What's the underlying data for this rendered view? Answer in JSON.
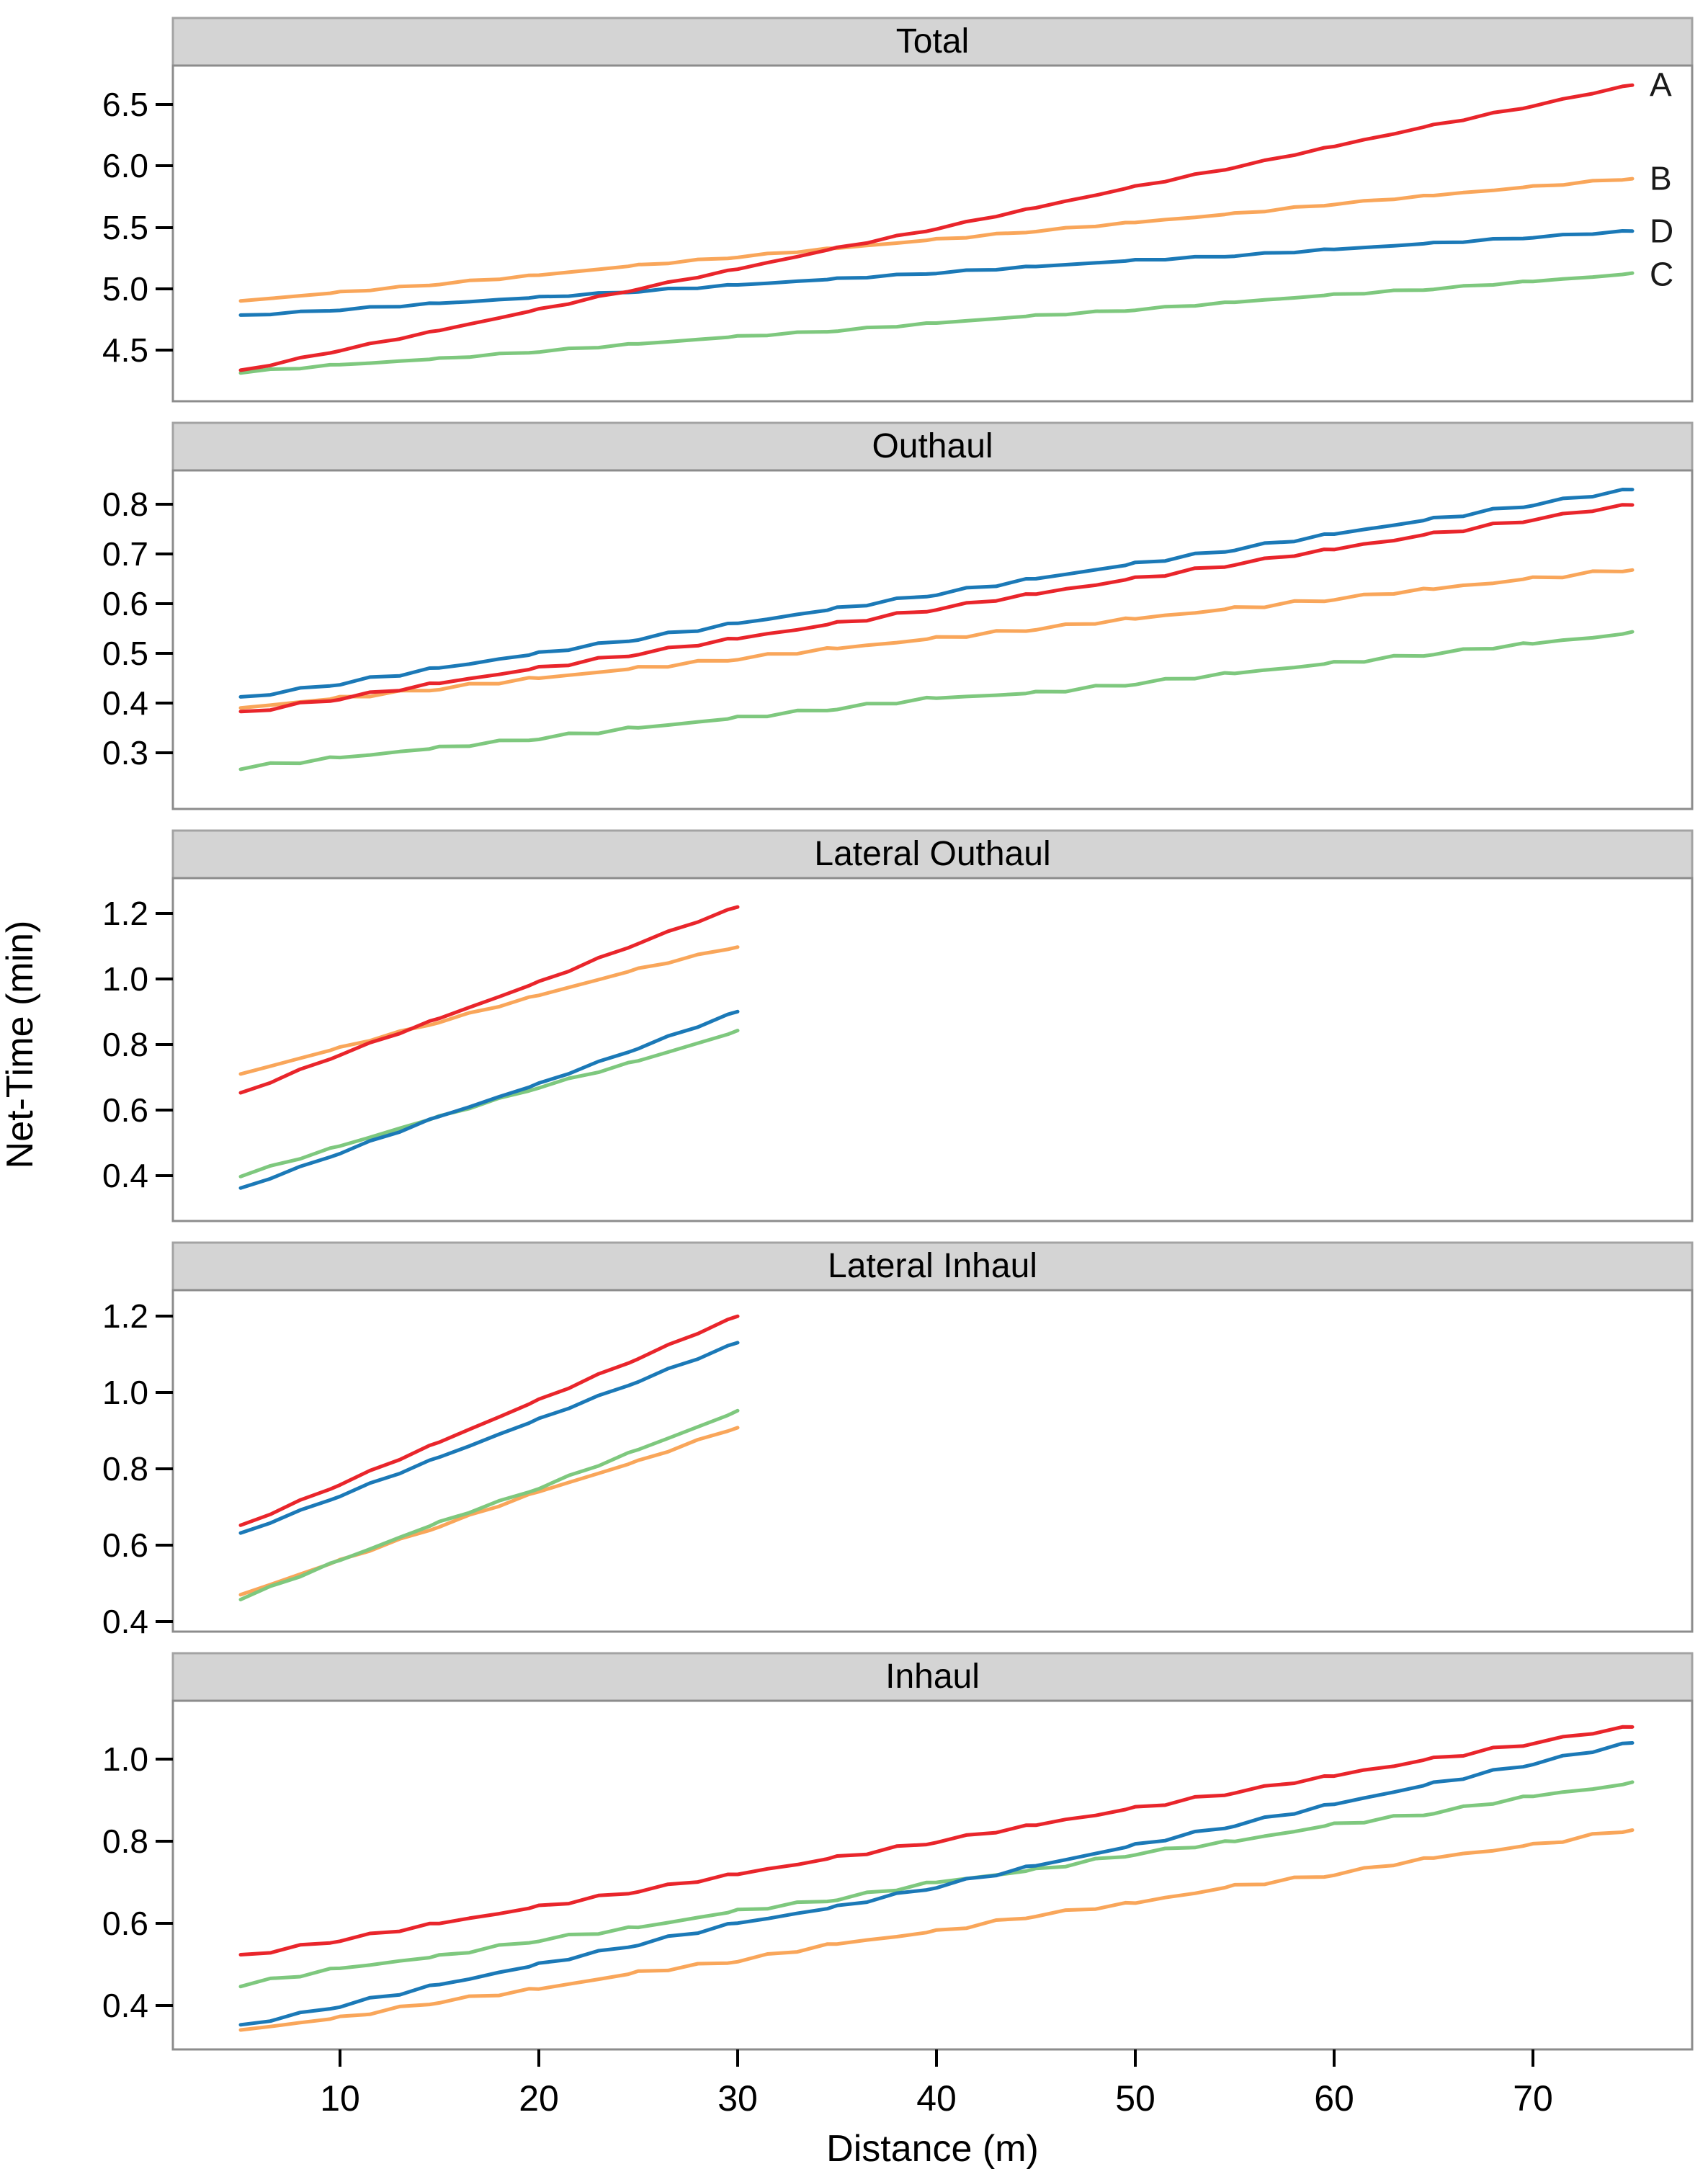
{
  "chart_data": {
    "type": "line",
    "title": "",
    "xlabel": "Distance (m)",
    "ylabel": "Net-Time (min)",
    "x_ticks": [
      10,
      20,
      30,
      40,
      50,
      60,
      70
    ],
    "xlim": [
      2,
      78
    ],
    "grid": false,
    "legend_position": "right-inside-top-panel",
    "colors": {
      "A": "#e9252b",
      "B": "#f9a65a",
      "C": "#7ec87e",
      "D": "#1b79b7"
    },
    "series_labels": {
      "A": "A",
      "B": "B",
      "C": "C",
      "D": "D"
    },
    "panels": [
      {
        "title": "Total",
        "y_ticks": [
          6.5,
          6.0,
          5.5,
          5.0,
          4.5
        ],
        "ylim": [
          4.2,
          6.9
        ],
        "legend": [
          "A",
          "B",
          "D",
          "C"
        ],
        "series": [
          {
            "id": "B",
            "x": [
              5,
              10,
              15,
              20,
              25,
              30,
              35,
              40,
              45,
              50,
              55,
              60,
              65,
              70,
              75
            ],
            "y": [
              4.9,
              4.97,
              5.04,
              5.11,
              5.19,
              5.26,
              5.33,
              5.4,
              5.47,
              5.54,
              5.61,
              5.69,
              5.76,
              5.83,
              5.9
            ]
          },
          {
            "id": "C",
            "x": [
              5,
              10,
              15,
              20,
              25,
              30,
              35,
              40,
              45,
              50,
              55,
              60,
              65,
              70,
              75
            ],
            "y": [
              4.32,
              4.38,
              4.43,
              4.49,
              4.55,
              4.61,
              4.66,
              4.72,
              4.78,
              4.83,
              4.89,
              4.95,
              5.0,
              5.06,
              5.12
            ]
          },
          {
            "id": "D",
            "x": [
              5,
              10,
              15,
              20,
              25,
              30,
              35,
              40,
              45,
              50,
              55,
              60,
              65,
              70,
              75
            ],
            "y": [
              4.78,
              4.83,
              4.88,
              4.93,
              4.98,
              5.03,
              5.08,
              5.13,
              5.18,
              5.23,
              5.27,
              5.32,
              5.37,
              5.42,
              5.47
            ]
          },
          {
            "id": "A",
            "x": [
              5,
              10,
              15,
              20,
              25,
              30,
              35,
              40,
              45,
              50,
              55,
              60,
              65,
              70,
              75
            ],
            "y": [
              4.33,
              4.5,
              4.66,
              4.83,
              5.0,
              5.16,
              5.33,
              5.49,
              5.66,
              5.83,
              5.99,
              6.16,
              6.33,
              6.49,
              6.66
            ]
          }
        ]
      },
      {
        "title": "Outhaul",
        "y_ticks": [
          0.8,
          0.7,
          0.6,
          0.5,
          0.4,
          0.3
        ],
        "ylim": [
          0.25,
          0.86
        ],
        "legend": [],
        "series": [
          {
            "id": "C",
            "x": [
              5,
              10,
              15,
              20,
              25,
              30,
              35,
              40,
              45,
              50,
              55,
              60,
              65,
              70,
              75
            ],
            "y": [
              0.27,
              0.29,
              0.31,
              0.33,
              0.35,
              0.37,
              0.39,
              0.41,
              0.42,
              0.44,
              0.46,
              0.48,
              0.5,
              0.52,
              0.54
            ]
          },
          {
            "id": "B",
            "x": [
              5,
              10,
              15,
              20,
              25,
              30,
              35,
              40,
              45,
              50,
              55,
              60,
              65,
              70,
              75
            ],
            "y": [
              0.39,
              0.41,
              0.43,
              0.45,
              0.47,
              0.49,
              0.51,
              0.53,
              0.55,
              0.57,
              0.59,
              0.61,
              0.63,
              0.65,
              0.67
            ]
          },
          {
            "id": "A",
            "x": [
              5,
              10,
              15,
              20,
              25,
              30,
              35,
              40,
              45,
              50,
              55,
              60,
              65,
              70,
              75
            ],
            "y": [
              0.38,
              0.41,
              0.44,
              0.47,
              0.5,
              0.53,
              0.56,
              0.59,
              0.62,
              0.65,
              0.68,
              0.71,
              0.74,
              0.77,
              0.8
            ]
          },
          {
            "id": "D",
            "x": [
              5,
              10,
              15,
              20,
              25,
              30,
              35,
              40,
              45,
              50,
              55,
              60,
              65,
              70,
              75
            ],
            "y": [
              0.41,
              0.44,
              0.47,
              0.5,
              0.53,
              0.56,
              0.59,
              0.62,
              0.65,
              0.68,
              0.71,
              0.74,
              0.77,
              0.8,
              0.83
            ]
          }
        ]
      },
      {
        "title": "Lateral Outhaul",
        "y_ticks": [
          1.2,
          1.0,
          0.8,
          0.6,
          0.4
        ],
        "ylim": [
          0.33,
          1.26
        ],
        "legend": [],
        "series": [
          {
            "id": "C",
            "x": [
              5,
              10,
              15,
              20,
              25,
              30
            ],
            "y": [
              0.4,
              0.49,
              0.58,
              0.67,
              0.75,
              0.84
            ]
          },
          {
            "id": "D",
            "x": [
              5,
              10,
              15,
              20,
              25,
              30
            ],
            "y": [
              0.36,
              0.47,
              0.58,
              0.68,
              0.79,
              0.9
            ]
          },
          {
            "id": "B",
            "x": [
              5,
              10,
              15,
              20,
              25,
              30
            ],
            "y": [
              0.71,
              0.79,
              0.87,
              0.95,
              1.03,
              1.1
            ]
          },
          {
            "id": "A",
            "x": [
              5,
              10,
              15,
              20,
              25,
              30
            ],
            "y": [
              0.65,
              0.77,
              0.88,
              0.99,
              1.11,
              1.22
            ]
          }
        ]
      },
      {
        "title": "Lateral Inhaul",
        "y_ticks": [
          1.2,
          1.0,
          0.8,
          0.6,
          0.4
        ],
        "ylim": [
          0.36,
          1.24
        ],
        "legend": [],
        "series": [
          {
            "id": "B",
            "x": [
              5,
              10,
              15,
              20,
              25,
              30
            ],
            "y": [
              0.47,
              0.56,
              0.65,
              0.74,
              0.82,
              0.91
            ]
          },
          {
            "id": "C",
            "x": [
              5,
              10,
              15,
              20,
              25,
              30
            ],
            "y": [
              0.46,
              0.56,
              0.66,
              0.75,
              0.85,
              0.95
            ]
          },
          {
            "id": "D",
            "x": [
              5,
              10,
              15,
              20,
              25,
              30
            ],
            "y": [
              0.63,
              0.73,
              0.83,
              0.93,
              1.03,
              1.13
            ]
          },
          {
            "id": "A",
            "x": [
              5,
              10,
              15,
              20,
              25,
              30
            ],
            "y": [
              0.65,
              0.76,
              0.87,
              0.98,
              1.09,
              1.2
            ]
          }
        ]
      },
      {
        "title": "Inhaul",
        "y_ticks": [
          1.0,
          0.8,
          0.6,
          0.4
        ],
        "ylim": [
          0.3,
          1.12
        ],
        "legend": [],
        "series": [
          {
            "id": "B",
            "x": [
              5,
              10,
              15,
              20,
              25,
              30,
              35,
              40,
              45,
              50,
              55,
              60,
              65,
              70,
              75
            ],
            "y": [
              0.34,
              0.37,
              0.41,
              0.44,
              0.48,
              0.51,
              0.55,
              0.58,
              0.62,
              0.65,
              0.69,
              0.72,
              0.76,
              0.79,
              0.83
            ]
          },
          {
            "id": "C",
            "x": [
              5,
              10,
              15,
              20,
              25,
              30,
              35,
              40,
              45,
              50,
              55,
              60,
              65,
              70,
              75
            ],
            "y": [
              0.45,
              0.49,
              0.52,
              0.56,
              0.59,
              0.63,
              0.66,
              0.7,
              0.73,
              0.77,
              0.8,
              0.84,
              0.87,
              0.91,
              0.94
            ]
          },
          {
            "id": "D",
            "x": [
              5,
              10,
              15,
              20,
              25,
              30,
              35,
              40,
              45,
              50,
              55,
              60,
              65,
              70,
              75
            ],
            "y": [
              0.35,
              0.4,
              0.45,
              0.5,
              0.55,
              0.6,
              0.64,
              0.69,
              0.74,
              0.79,
              0.84,
              0.89,
              0.94,
              0.99,
              1.04
            ]
          },
          {
            "id": "A",
            "x": [
              5,
              10,
              15,
              20,
              25,
              30,
              35,
              40,
              45,
              50,
              55,
              60,
              65,
              70,
              75
            ],
            "y": [
              0.52,
              0.56,
              0.6,
              0.64,
              0.68,
              0.72,
              0.76,
              0.8,
              0.84,
              0.88,
              0.92,
              0.96,
              1.0,
              1.04,
              1.08
            ]
          }
        ]
      }
    ],
    "style_colors": {
      "strip_bg": "#d4d4d4",
      "strip_border": "#a3a3a3",
      "panel_border": "#8c8c8c",
      "tick": "#000000",
      "text": "#000000",
      "legend_text": "#1a1a1a"
    }
  }
}
